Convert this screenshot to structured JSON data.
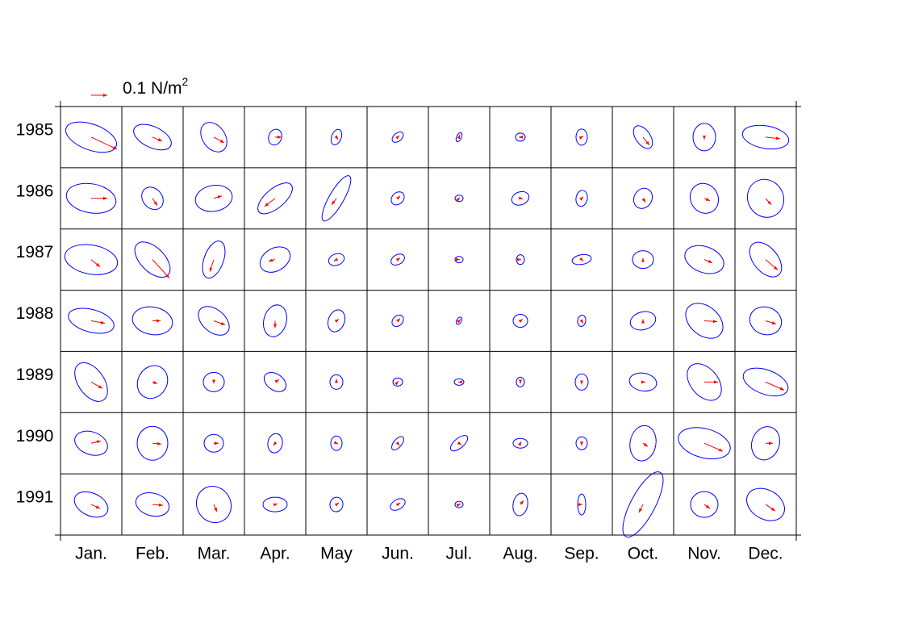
{
  "chart_data": {
    "type": "vector-ellipse-grid",
    "reference_vector": 0.1,
    "reference_unit": "N/m",
    "reference_unit_exponent": "2",
    "arrow_color": "#ff0000",
    "ellipse_color": "#0000ff",
    "columns": [
      "Jan.",
      "Feb.",
      "Mar.",
      "Apr.",
      "May",
      "Jun.",
      "Jul.",
      "Aug.",
      "Sep.",
      "Oct.",
      "Nov.",
      "Dec."
    ],
    "rows": [
      {
        "label": "1985",
        "cells": [
          [
            0.16,
            -0.075,
            0.165,
            0.08,
            -20
          ],
          [
            0.06,
            -0.025,
            0.125,
            0.065,
            -25
          ],
          [
            0.065,
            -0.035,
            0.1,
            0.07,
            -55
          ],
          [
            0.04,
            0,
            0.05,
            0.04,
            70
          ],
          [
            0.01,
            -0.015,
            0.05,
            0.03,
            70
          ],
          [
            0.01,
            0.01,
            0.04,
            0.025,
            40
          ],
          [
            0.005,
            0.015,
            0.03,
            0.015,
            65
          ],
          [
            -0.01,
            0,
            0.03,
            0.025,
            0
          ],
          [
            0.01,
            0.005,
            0.05,
            0.035,
            90
          ],
          [
            0.04,
            -0.05,
            0.08,
            0.045,
            -55
          ],
          [
            0,
            -0.015,
            0.085,
            0.07,
            90
          ],
          [
            0.09,
            -0.01,
            0.145,
            0.07,
            -10
          ]
        ]
      },
      {
        "label": "1986",
        "cells": [
          [
            0.1,
            0,
            0.155,
            0.09,
            -10
          ],
          [
            0.03,
            -0.045,
            0.075,
            0.06,
            -50
          ],
          [
            0.05,
            0.015,
            0.115,
            0.08,
            10
          ],
          [
            -0.065,
            -0.05,
            0.13,
            0.06,
            40
          ],
          [
            -0.03,
            -0.04,
            0.16,
            0.045,
            60
          ],
          [
            0.015,
            0.015,
            0.045,
            0.035,
            45
          ],
          [
            0.005,
            0.005,
            0.025,
            0.02,
            0
          ],
          [
            0.015,
            -0.005,
            0.055,
            0.04,
            20
          ],
          [
            0.01,
            0.01,
            0.05,
            0.035,
            80
          ],
          [
            0.015,
            -0.025,
            0.065,
            0.055,
            60
          ],
          [
            0.035,
            -0.015,
            0.095,
            0.085,
            -60
          ],
          [
            0.035,
            -0.04,
            0.12,
            0.11,
            -60
          ]
        ]
      },
      {
        "label": "1987",
        "cells": [
          [
            0.055,
            -0.045,
            0.165,
            0.09,
            -10
          ],
          [
            0.105,
            -0.115,
            0.135,
            0.075,
            -45
          ],
          [
            -0.025,
            -0.075,
            0.12,
            0.06,
            70
          ],
          [
            -0.04,
            -0.01,
            0.1,
            0.07,
            30
          ],
          [
            -0.015,
            -0.01,
            0.05,
            0.035,
            20
          ],
          [
            0.015,
            0.01,
            0.045,
            0.03,
            30
          ],
          [
            0.005,
            0,
            0.025,
            0.02,
            0
          ],
          [
            0.005,
            0,
            0.03,
            0.025,
            90
          ],
          [
            0.01,
            -0.01,
            0.06,
            0.03,
            10
          ],
          [
            0,
            0.01,
            0.065,
            0.055,
            0
          ],
          [
            0.05,
            -0.02,
            0.125,
            0.08,
            -20
          ],
          [
            0.075,
            -0.065,
            0.125,
            0.075,
            -50
          ]
        ]
      },
      {
        "label": "1988",
        "cells": [
          [
            0.085,
            -0.015,
            0.145,
            0.07,
            -15
          ],
          [
            0.05,
            0,
            0.125,
            0.085,
            -10
          ],
          [
            0.07,
            -0.025,
            0.11,
            0.07,
            -40
          ],
          [
            0,
            -0.045,
            0.1,
            0.07,
            75
          ],
          [
            0.015,
            0.01,
            0.07,
            0.05,
            70
          ],
          [
            0.015,
            0.015,
            0.04,
            0.03,
            45
          ],
          [
            0.01,
            0.01,
            0.025,
            0.015,
            60
          ],
          [
            0.015,
            0.01,
            0.045,
            0.04,
            0
          ],
          [
            0.01,
            -0.015,
            0.035,
            0.025,
            80
          ],
          [
            0,
            0.01,
            0.08,
            0.055,
            15
          ],
          [
            0.08,
            -0.005,
            0.13,
            0.09,
            -40
          ],
          [
            0.065,
            -0.02,
            0.1,
            0.085,
            -20
          ]
        ]
      },
      {
        "label": "1989",
        "cells": [
          [
            0.07,
            -0.04,
            0.135,
            0.08,
            -55
          ],
          [
            0.03,
            -0.01,
            0.105,
            0.09,
            60
          ],
          [
            0,
            -0.01,
            0.065,
            0.06,
            0
          ],
          [
            0.025,
            0.015,
            0.075,
            0.05,
            -35
          ],
          [
            0,
            0.02,
            0.045,
            0.04,
            90
          ],
          [
            0.005,
            0.005,
            0.03,
            0.025,
            0
          ],
          [
            -0.005,
            0,
            0.03,
            0.02,
            0
          ],
          [
            0,
            -0.01,
            0.03,
            0.025,
            90
          ],
          [
            0,
            -0.015,
            0.05,
            0.04,
            90
          ],
          [
            0.015,
            0,
            0.085,
            0.055,
            -10
          ],
          [
            0.085,
            0,
            0.13,
            0.085,
            -50
          ],
          [
            0.115,
            -0.05,
            0.145,
            0.075,
            -20
          ]
        ]
      },
      {
        "label": "1990",
        "cells": [
          [
            0.06,
            0.015,
            0.105,
            0.07,
            -20
          ],
          [
            0.055,
            -0.005,
            0.105,
            0.095,
            90
          ],
          [
            0.03,
            0,
            0.06,
            0.055,
            0
          ],
          [
            -0.01,
            -0.015,
            0.06,
            0.045,
            80
          ],
          [
            0.01,
            -0.005,
            0.045,
            0.035,
            90
          ],
          [
            0.01,
            -0.015,
            0.05,
            0.025,
            50
          ],
          [
            0.015,
            -0.01,
            0.065,
            0.03,
            40
          ],
          [
            0.005,
            0.01,
            0.045,
            0.03,
            0
          ],
          [
            0,
            -0.015,
            0.04,
            0.035,
            90
          ],
          [
            0.03,
            -0.02,
            0.11,
            0.08,
            80
          ],
          [
            0.115,
            -0.05,
            0.165,
            0.09,
            -15
          ],
          [
            0.045,
            0,
            0.105,
            0.085,
            70
          ]
        ]
      },
      {
        "label": "1991",
        "cells": [
          [
            0.055,
            -0.025,
            0.11,
            0.07,
            -25
          ],
          [
            0.065,
            -0.005,
            0.105,
            0.07,
            -15
          ],
          [
            0.02,
            -0.045,
            0.115,
            0.105,
            -60
          ],
          [
            0.015,
            0.005,
            0.075,
            0.045,
            0
          ],
          [
            0.015,
            0.01,
            0.045,
            0.04,
            80
          ],
          [
            0.015,
            0.01,
            0.05,
            0.03,
            30
          ],
          [
            0.01,
            0.005,
            0.025,
            0.02,
            0
          ],
          [
            0.02,
            0.025,
            0.07,
            0.045,
            80
          ],
          [
            0.005,
            0,
            0.065,
            0.025,
            90
          ],
          [
            -0.025,
            -0.05,
            0.225,
            0.075,
            62
          ],
          [
            0.035,
            -0.025,
            0.085,
            0.08,
            0
          ],
          [
            0.06,
            -0.04,
            0.125,
            0.09,
            -30
          ]
        ]
      }
    ]
  }
}
